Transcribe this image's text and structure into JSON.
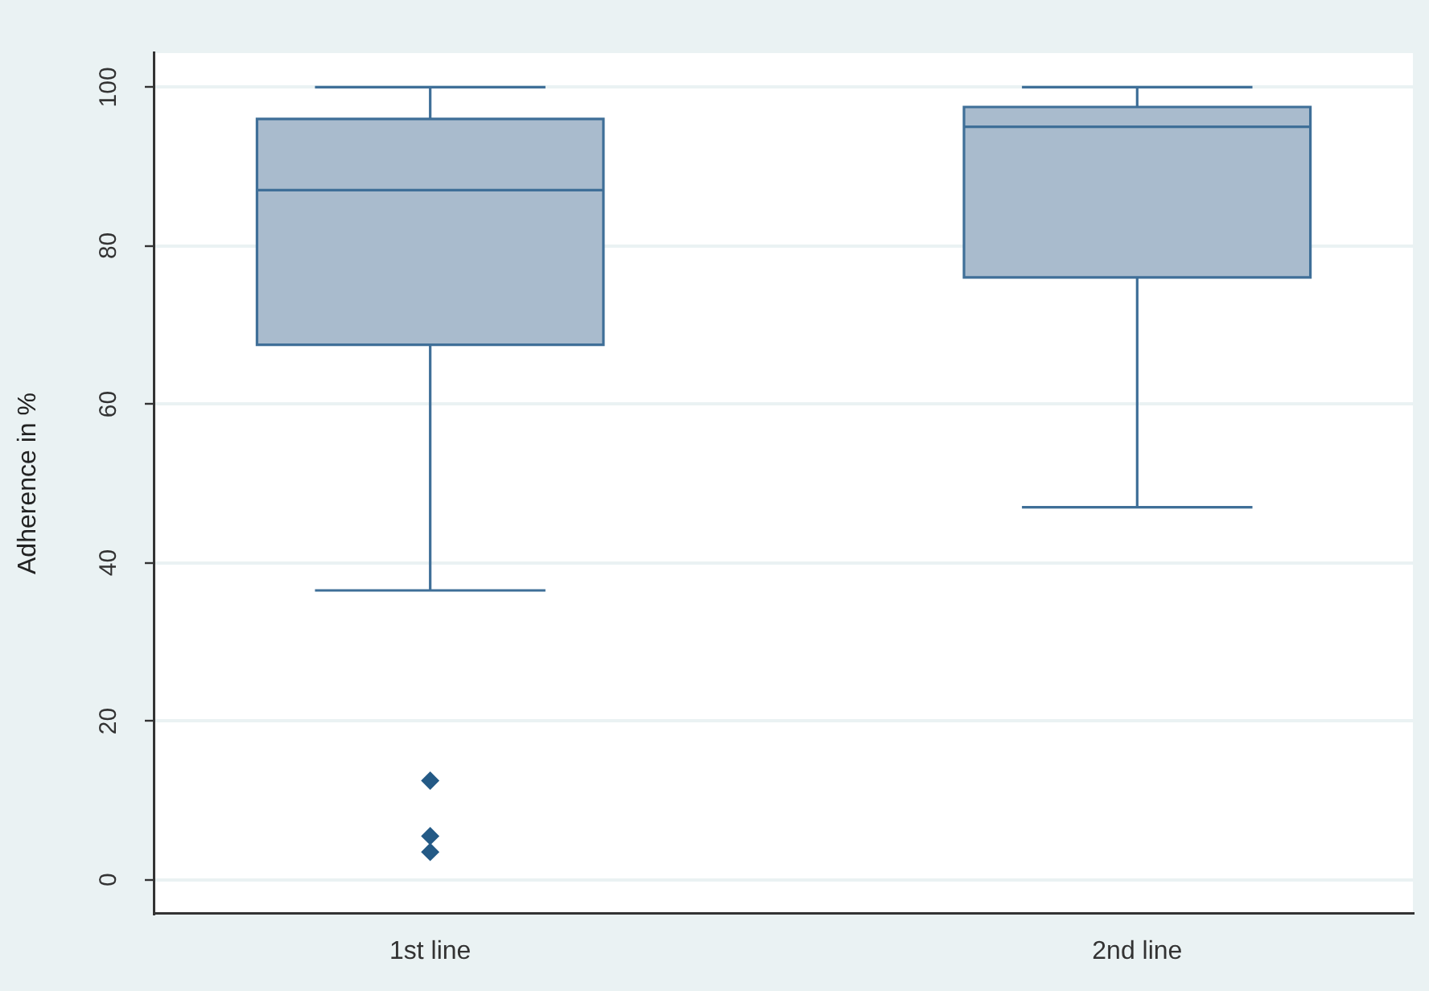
{
  "chart_data": {
    "type": "box",
    "ylabel": "Adherence in %",
    "categories": [
      "1st line",
      "2nd line"
    ],
    "boxes": [
      {
        "low": 36.5,
        "q1": 67.5,
        "median": 87,
        "q3": 96,
        "high": 100,
        "outliers": [
          12.5,
          5.5,
          3.5
        ]
      },
      {
        "low": 47,
        "q1": 76,
        "median": 95,
        "q3": 97.5,
        "high": 100
      }
    ],
    "color": "#a9bbcd",
    "ylim": [
      -4.3,
      104.3
    ],
    "yticks": [
      0,
      20,
      40,
      60,
      80,
      100
    ],
    "grid": "y",
    "marker": "diamond"
  }
}
